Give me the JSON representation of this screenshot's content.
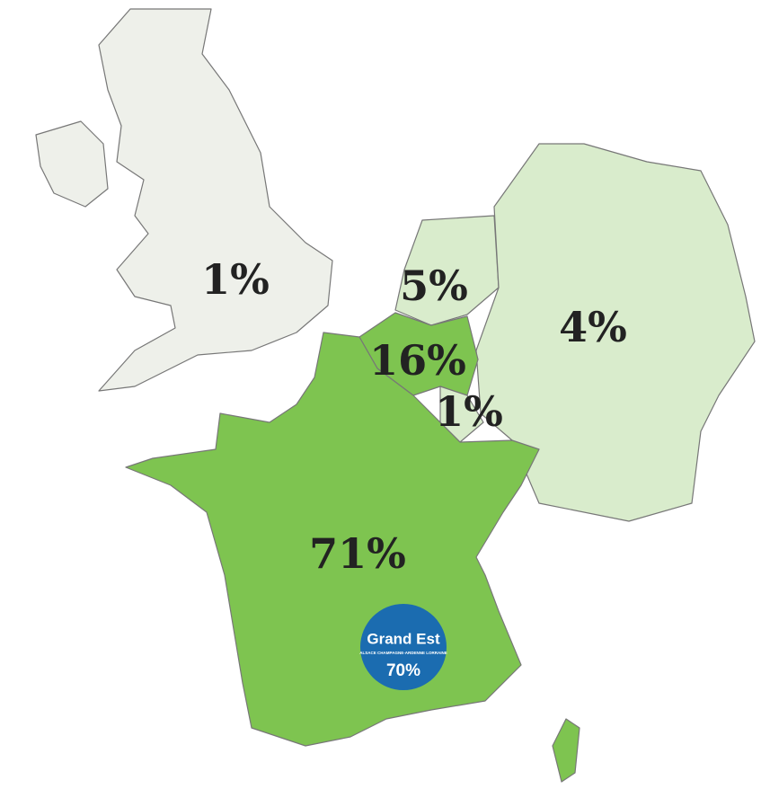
{
  "map": {
    "regions": [
      {
        "value": 1,
        "value_label": "1%",
        "color": "#eef0ea"
      },
      {
        "value": 5,
        "value_label": "5%",
        "color": "#d9eccc"
      },
      {
        "value": 4,
        "value_label": "4%",
        "color": "#d9eccc"
      },
      {
        "value": 16,
        "value_label": "16%",
        "color": "#7ec450"
      },
      {
        "value": 1,
        "value_label": "1%",
        "color": "#d9eccc"
      },
      {
        "value": 71,
        "value_label": "71%",
        "color": "#7ec450"
      }
    ],
    "badge": {
      "title": "Grand Est",
      "subtitle": "ALSACE CHAMPAGNE-ARDENNE LORRAINE",
      "value": 70,
      "value_label": "70%",
      "color": "#1b6cb0"
    }
  }
}
